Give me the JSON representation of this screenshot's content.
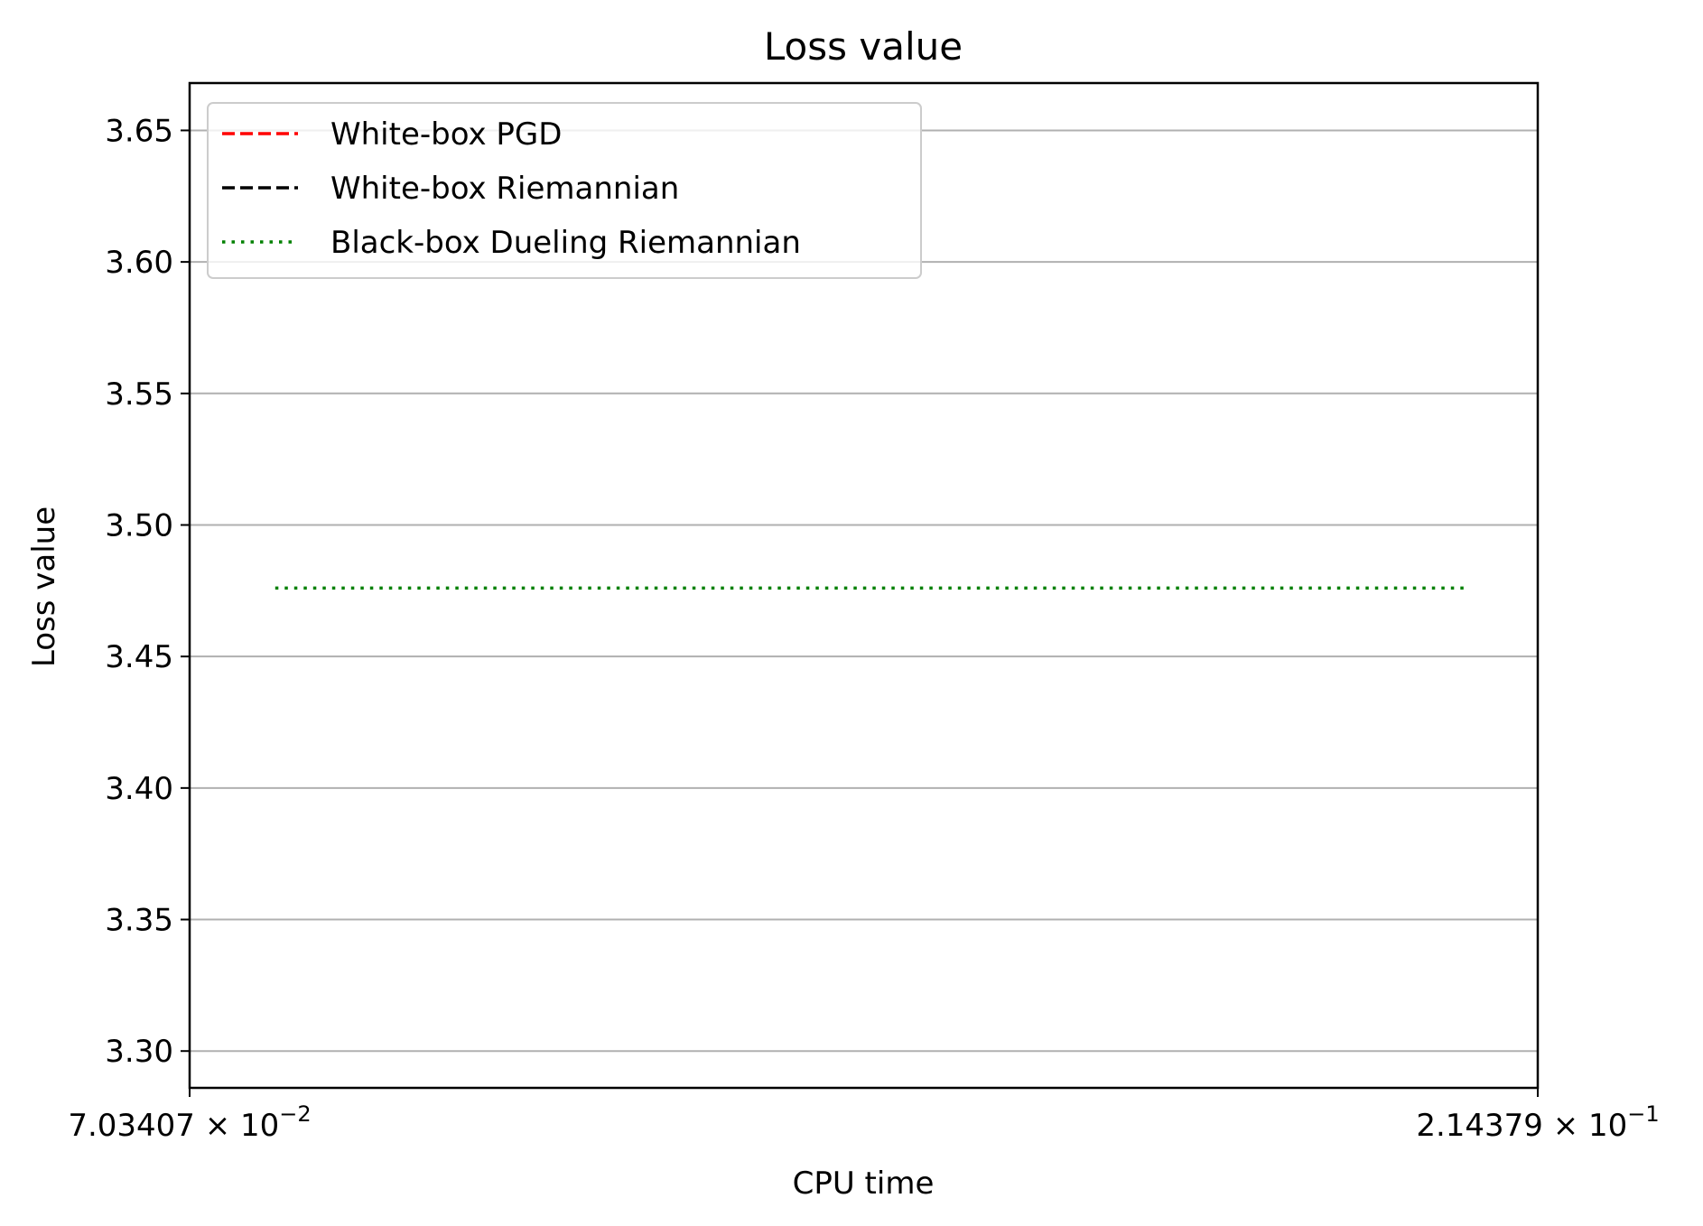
{
  "chart_data": {
    "type": "line",
    "title": "Loss value",
    "xlabel": "CPU time",
    "ylabel": "Loss value",
    "x_scale": "log",
    "xlim": [
      0.0703407,
      0.214379
    ],
    "ylim": [
      3.286,
      3.668
    ],
    "x_ticks": [
      {
        "value": 0.0703407,
        "mantissa": "7.03407",
        "base": "10",
        "exponent": "−2"
      },
      {
        "value": 0.214379,
        "mantissa": "2.14379",
        "base": "10",
        "exponent": "−1"
      }
    ],
    "y_ticks": [
      3.3,
      3.35,
      3.4,
      3.45,
      3.5,
      3.55,
      3.6,
      3.65
    ],
    "y_tick_labels": [
      "3.30",
      "3.35",
      "3.40",
      "3.45",
      "3.50",
      "3.55",
      "3.60",
      "3.65"
    ],
    "grid": "horizontal",
    "legend_position": "upper left",
    "series": [
      {
        "name": "White-box PGD",
        "color": "#ff0000",
        "style": "dashed",
        "x": [],
        "y": []
      },
      {
        "name": "White-box Riemannian",
        "color": "#000000",
        "style": "dashed",
        "x": [],
        "y": []
      },
      {
        "name": "Black-box Dueling Riemannian",
        "color": "#008000",
        "style": "dotted",
        "x": [
          0.0755,
          0.2022
        ],
        "y": [
          3.476,
          3.476
        ]
      }
    ]
  }
}
